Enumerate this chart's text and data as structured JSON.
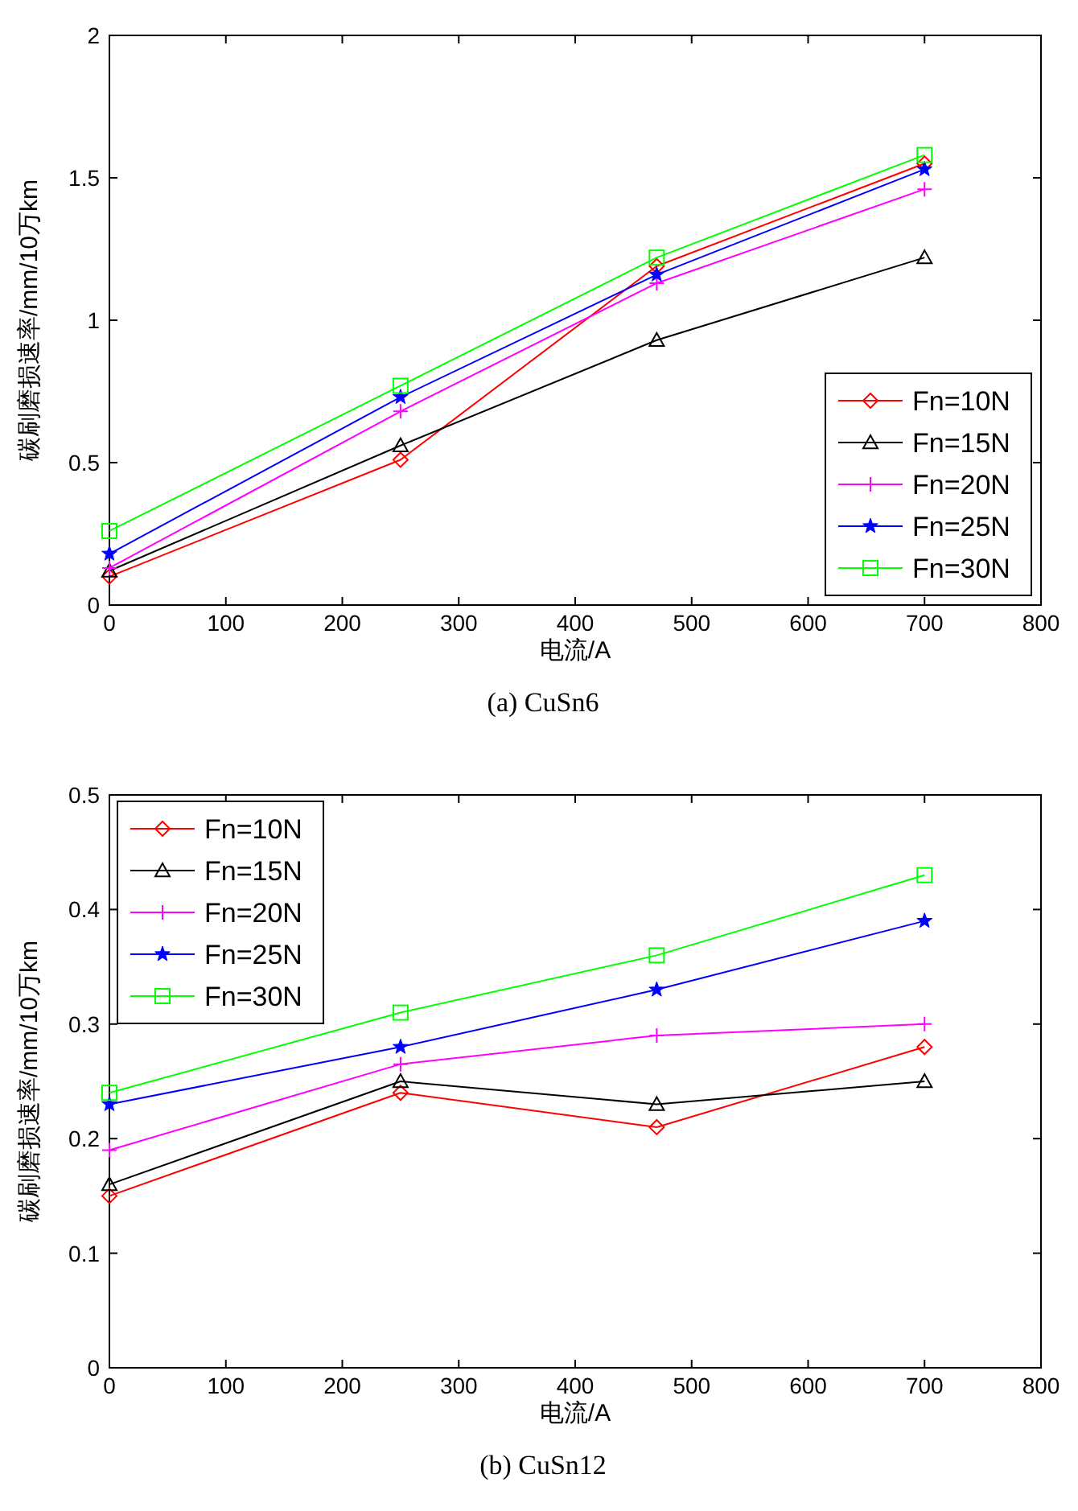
{
  "chart_data": [
    {
      "type": "line",
      "title": "(a) CuSn6",
      "xlabel": "电流/A",
      "ylabel": "碳刷磨损速率/mm/10万km",
      "x": [
        0,
        250,
        470,
        700
      ],
      "xlim": [
        0,
        800
      ],
      "xticks": [
        0,
        100,
        200,
        300,
        400,
        500,
        600,
        700,
        800
      ],
      "ylim": [
        0,
        2
      ],
      "yticks": [
        0,
        0.5,
        1,
        1.5,
        2
      ],
      "grid": false,
      "legend": "bottom right",
      "series": [
        {
          "name": "Fn=10N",
          "color": "#ff0000",
          "marker": "diamond",
          "values": [
            0.1,
            0.51,
            1.19,
            1.55
          ]
        },
        {
          "name": "Fn=15N",
          "color": "#000000",
          "marker": "triangle",
          "values": [
            0.12,
            0.56,
            0.93,
            1.22
          ]
        },
        {
          "name": "Fn=20N",
          "color": "#ff00ff",
          "marker": "cross",
          "values": [
            0.13,
            0.68,
            1.13,
            1.46
          ]
        },
        {
          "name": "Fn=25N",
          "color": "#0000ff",
          "marker": "star",
          "values": [
            0.18,
            0.73,
            1.16,
            1.53
          ]
        },
        {
          "name": "Fn=30N",
          "color": "#00ff00",
          "marker": "square",
          "values": [
            0.26,
            0.77,
            1.22,
            1.58
          ]
        }
      ]
    },
    {
      "type": "line",
      "title": "(b) CuSn12",
      "xlabel": "电流/A",
      "ylabel": "碳刷磨损速率/mm/10万km",
      "x": [
        0,
        250,
        470,
        700
      ],
      "xlim": [
        0,
        800
      ],
      "xticks": [
        0,
        100,
        200,
        300,
        400,
        500,
        600,
        700,
        800
      ],
      "ylim": [
        0,
        0.5
      ],
      "yticks": [
        0,
        0.1,
        0.2,
        0.3,
        0.4,
        0.5
      ],
      "grid": false,
      "legend": "top left",
      "series": [
        {
          "name": "Fn=10N",
          "color": "#ff0000",
          "marker": "diamond",
          "values": [
            0.15,
            0.24,
            0.21,
            0.28
          ]
        },
        {
          "name": "Fn=15N",
          "color": "#000000",
          "marker": "triangle",
          "values": [
            0.16,
            0.25,
            0.23,
            0.25
          ]
        },
        {
          "name": "Fn=20N",
          "color": "#ff00ff",
          "marker": "cross",
          "values": [
            0.19,
            0.265,
            0.29,
            0.3
          ]
        },
        {
          "name": "Fn=25N",
          "color": "#0000ff",
          "marker": "star",
          "values": [
            0.23,
            0.28,
            0.33,
            0.39
          ]
        },
        {
          "name": "Fn=30N",
          "color": "#00ff00",
          "marker": "square",
          "values": [
            0.24,
            0.31,
            0.36,
            0.43
          ]
        }
      ]
    }
  ]
}
